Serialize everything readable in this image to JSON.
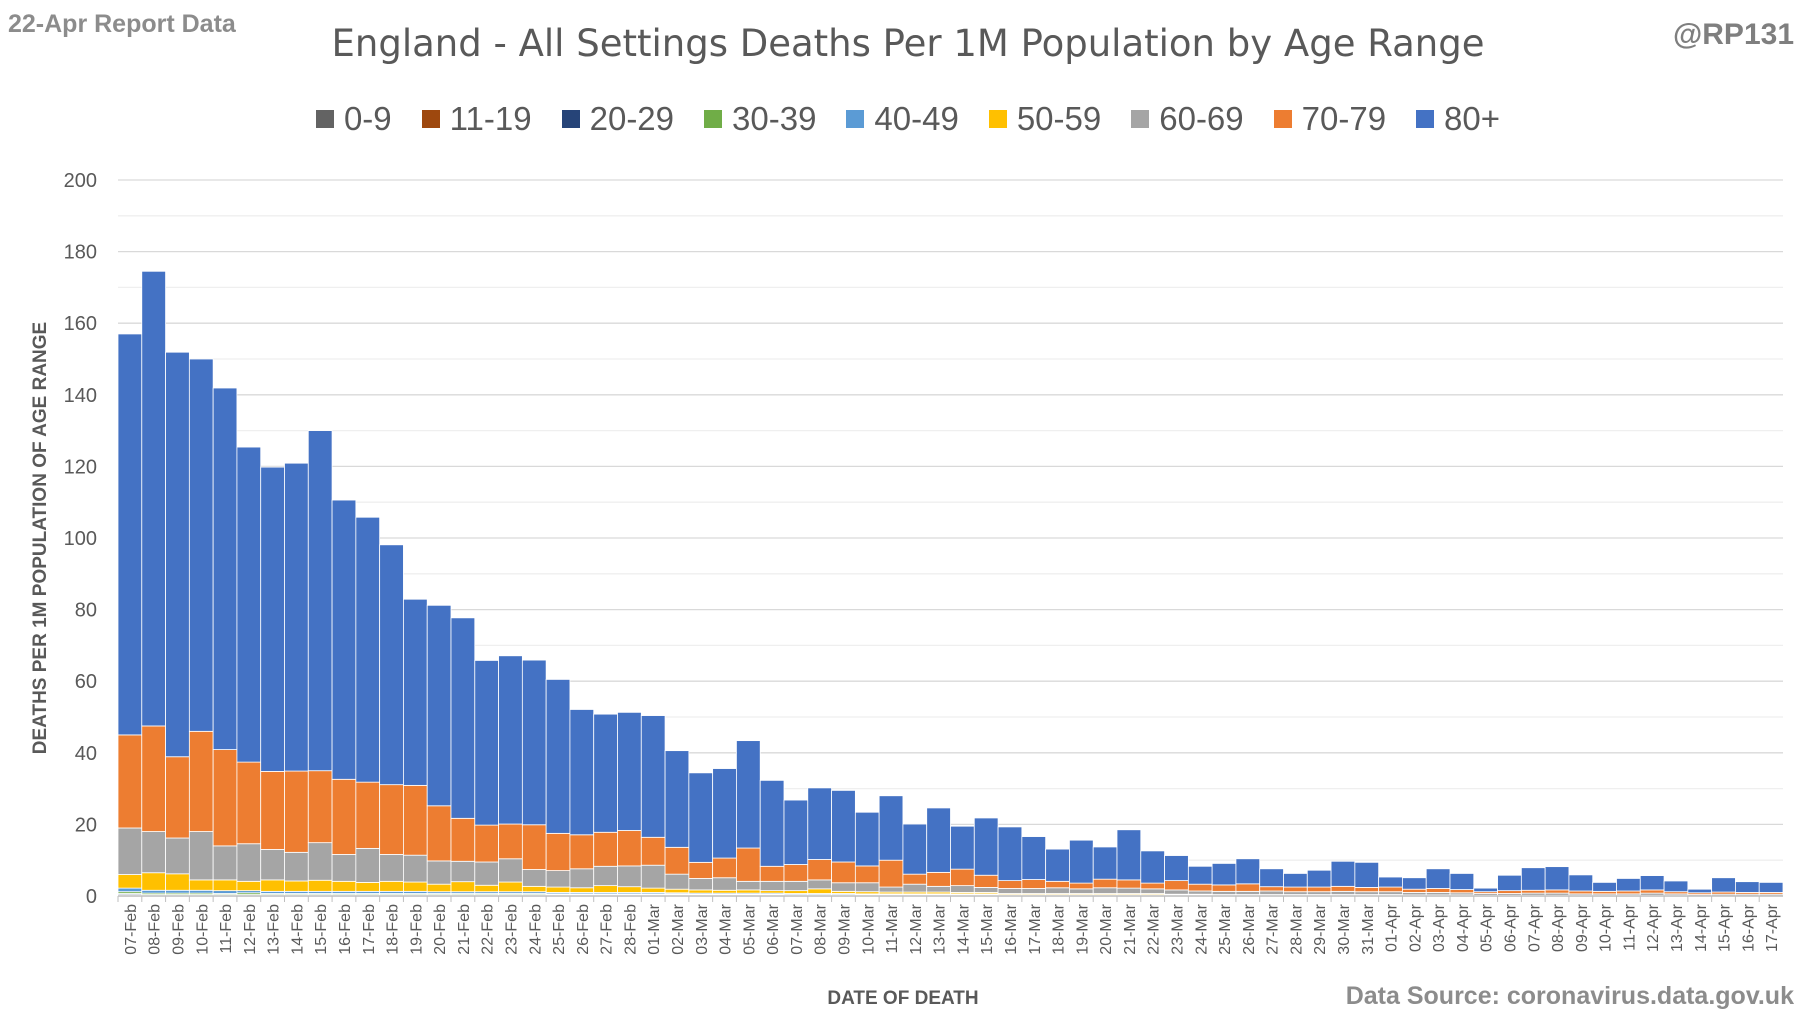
{
  "header": {
    "report_label": "22-Apr Report Data",
    "handle": "@RP131",
    "source": "Data Source: coronavirus.data.gov.uk"
  },
  "chart_data": {
    "type": "bar",
    "stacked": true,
    "title": "England - All Settings Deaths Per 1M Population by Age Range",
    "xlabel": "DATE OF DEATH",
    "ylabel": "DEATHS PER 1M POPULATION OF AGE RANGE",
    "ylim": [
      0,
      200
    ],
    "yticks": [
      0,
      20,
      40,
      60,
      80,
      100,
      120,
      140,
      160,
      180,
      200
    ],
    "grid": true,
    "legend_position": "top",
    "categories": [
      "07-Feb",
      "08-Feb",
      "09-Feb",
      "10-Feb",
      "11-Feb",
      "12-Feb",
      "13-Feb",
      "14-Feb",
      "15-Feb",
      "16-Feb",
      "17-Feb",
      "18-Feb",
      "19-Feb",
      "20-Feb",
      "21-Feb",
      "22-Feb",
      "23-Feb",
      "24-Feb",
      "25-Feb",
      "26-Feb",
      "27-Feb",
      "28-Feb",
      "01-Mar",
      "02-Mar",
      "03-Mar",
      "04-Mar",
      "05-Mar",
      "06-Mar",
      "07-Mar",
      "08-Mar",
      "09-Mar",
      "10-Mar",
      "11-Mar",
      "12-Mar",
      "13-Mar",
      "14-Mar",
      "15-Mar",
      "16-Mar",
      "17-Mar",
      "18-Mar",
      "19-Mar",
      "20-Mar",
      "21-Mar",
      "22-Mar",
      "23-Mar",
      "24-Mar",
      "25-Mar",
      "26-Mar",
      "27-Mar",
      "28-Mar",
      "29-Mar",
      "30-Mar",
      "31-Mar",
      "01-Apr",
      "02-Apr",
      "03-Apr",
      "04-Apr",
      "05-Apr",
      "06-Apr",
      "07-Apr",
      "08-Apr",
      "09-Apr",
      "10-Apr",
      "11-Apr",
      "12-Apr",
      "13-Apr",
      "14-Apr",
      "15-Apr",
      "16-Apr",
      "17-Apr"
    ],
    "series": [
      {
        "name": "0-9",
        "color": "#636363",
        "values": [
          0.2,
          0.1,
          0.1,
          0.1,
          0.1,
          0.1,
          0.1,
          0.1,
          0.1,
          0.1,
          0.1,
          0.1,
          0.1,
          0.1,
          0.1,
          0.1,
          0.1,
          0.1,
          0.1,
          0.1,
          0.1,
          0.1,
          0.1,
          0.1,
          0.1,
          0.1,
          0.1,
          0.1,
          0.1,
          0.1,
          0.1,
          0.1,
          0.1,
          0.1,
          0.1,
          0.1,
          0.1,
          0,
          0,
          0,
          0,
          0,
          0,
          0,
          0,
          0,
          0,
          0,
          0,
          0,
          0,
          0,
          0,
          0,
          0,
          0,
          0,
          0,
          0,
          0,
          0,
          0,
          0,
          0,
          0,
          0,
          0,
          0,
          0,
          0
        ]
      },
      {
        "name": "11-19",
        "color": "#9e480e",
        "values": [
          0.2,
          0.1,
          0.1,
          0.1,
          0.1,
          0.1,
          0.1,
          0.1,
          0.1,
          0.1,
          0.1,
          0.1,
          0.1,
          0.1,
          0.1,
          0.1,
          0.1,
          0.1,
          0.1,
          0.1,
          0.1,
          0.1,
          0.1,
          0.1,
          0.1,
          0.1,
          0.1,
          0.1,
          0.1,
          0.1,
          0.1,
          0.1,
          0.1,
          0.1,
          0.1,
          0.1,
          0.1,
          0,
          0,
          0,
          0,
          0,
          0,
          0,
          0,
          0,
          0,
          0,
          0,
          0,
          0,
          0,
          0,
          0,
          0,
          0,
          0,
          0,
          0,
          0,
          0,
          0,
          0,
          0,
          0,
          0,
          0,
          0,
          0,
          0
        ]
      },
      {
        "name": "20-29",
        "color": "#264478",
        "values": [
          0.3,
          0.2,
          0.2,
          0.2,
          0.2,
          0.2,
          0.2,
          0.2,
          0.2,
          0.2,
          0.2,
          0.2,
          0.2,
          0.2,
          0.2,
          0.2,
          0.2,
          0.2,
          0.2,
          0.2,
          0.2,
          0.2,
          0.2,
          0.2,
          0.1,
          0.1,
          0.1,
          0.1,
          0.1,
          0.1,
          0.1,
          0.1,
          0.1,
          0.1,
          0.1,
          0.1,
          0.1,
          0.1,
          0.1,
          0.1,
          0.1,
          0.1,
          0.1,
          0.1,
          0.1,
          0.1,
          0,
          0,
          0,
          0,
          0,
          0,
          0,
          0,
          0,
          0,
          0,
          0,
          0,
          0,
          0,
          0,
          0,
          0,
          0,
          0,
          0,
          0,
          0,
          0
        ]
      },
      {
        "name": "30-39",
        "color": "#70ad47",
        "values": [
          0.5,
          0.4,
          0.4,
          0.4,
          0.3,
          0.5,
          0.3,
          0.3,
          0.3,
          0.3,
          0.3,
          0.3,
          0.3,
          0.3,
          0.3,
          0.3,
          0.3,
          0.3,
          0.2,
          0.2,
          0.2,
          0.2,
          0.2,
          0.2,
          0.2,
          0.2,
          0.2,
          0.2,
          0.1,
          0.1,
          0.1,
          0.1,
          0.1,
          0.1,
          0.1,
          0.1,
          0.1,
          0.1,
          0.1,
          0.1,
          0.1,
          0.1,
          0.1,
          0.1,
          0.1,
          0.1,
          0.1,
          0.1,
          0.1,
          0.1,
          0.1,
          0.1,
          0.1,
          0.1,
          0.1,
          0.1,
          0.1,
          0,
          0,
          0,
          0,
          0,
          0,
          0,
          0,
          0,
          0,
          0,
          0,
          0
        ]
      },
      {
        "name": "40-49",
        "color": "#5b9bd5",
        "values": [
          1.0,
          0.8,
          0.8,
          0.8,
          0.8,
          0.6,
          0.6,
          0.6,
          0.6,
          0.6,
          0.6,
          0.6,
          0.6,
          0.5,
          0.5,
          0.5,
          0.5,
          0.5,
          0.4,
          0.4,
          0.4,
          0.4,
          0.4,
          0.3,
          0.3,
          0.3,
          0.3,
          0.3,
          0.3,
          0.3,
          0.3,
          0.2,
          0.2,
          0.2,
          0.2,
          0.2,
          0.2,
          0.2,
          0.2,
          0.2,
          0.2,
          0.2,
          0.2,
          0.2,
          0.1,
          0.1,
          0.1,
          0.1,
          0.1,
          0.1,
          0.1,
          0.1,
          0.1,
          0.1,
          0.1,
          0.1,
          0.1,
          0.1,
          0.1,
          0.1,
          0.1,
          0.1,
          0.1,
          0.1,
          0.1,
          0.1,
          0,
          0,
          0,
          0
        ]
      },
      {
        "name": "50-59",
        "color": "#ffc000",
        "values": [
          3.8,
          4.9,
          4.6,
          2.9,
          3.0,
          2.6,
          3.2,
          2.9,
          3.1,
          2.8,
          2.5,
          2.8,
          2.6,
          2.1,
          2.8,
          1.8,
          2.7,
          1.5,
          1.5,
          1.3,
          1.9,
          1.6,
          1.2,
          1.0,
          0.9,
          0.8,
          0.9,
          0.7,
          0.8,
          1.3,
          0.6,
          0.6,
          0.5,
          0.5,
          0.5,
          0.4,
          0.4,
          0.3,
          0.3,
          0.3,
          0.3,
          0.3,
          0.3,
          0.3,
          0.2,
          0.2,
          0.2,
          0.2,
          0.2,
          0.2,
          0.2,
          0.2,
          0.2,
          0.2,
          0.1,
          0.1,
          0.1,
          0.1,
          0.1,
          0.1,
          0.1,
          0.1,
          0.1,
          0.1,
          0.1,
          0.1,
          0.1,
          0.1,
          0.1,
          0.1
        ]
      },
      {
        "name": "60-69",
        "color": "#a5a5a5",
        "values": [
          13,
          11.5,
          10,
          13.5,
          9.5,
          10.5,
          8.5,
          8,
          10.5,
          7.5,
          9.5,
          7.5,
          7.5,
          6.5,
          5.7,
          6.5,
          6.5,
          4.7,
          4.6,
          5.3,
          5.4,
          5.8,
          6.4,
          4.2,
          3.2,
          3.5,
          2.4,
          2.6,
          2.6,
          2.5,
          2.4,
          2.5,
          1.4,
          2.2,
          1.6,
          1.9,
          1.4,
          1.4,
          1.4,
          1.6,
          1.3,
          1.6,
          1.5,
          1.3,
          1.2,
          0.9,
          0.9,
          0.9,
          1.0,
          0.8,
          0.8,
          0.9,
          0.8,
          0.8,
          0.7,
          0.7,
          0.6,
          0.5,
          0.5,
          0.6,
          0.6,
          0.4,
          0.4,
          0.4,
          0.6,
          0.4,
          0.3,
          0.4,
          0.4,
          0.4
        ]
      },
      {
        "name": "70-79",
        "color": "#ed7d31",
        "values": [
          26,
          29.5,
          22.7,
          28,
          26.9,
          22.8,
          21.8,
          22.7,
          20.1,
          21,
          18.5,
          19.5,
          19.5,
          15.4,
          12,
          10.3,
          9.7,
          12.5,
          10.4,
          9.5,
          9.5,
          9.9,
          7.8,
          7.5,
          4.5,
          5.5,
          9.3,
          4.2,
          4.7,
          5.7,
          5.8,
          4.7,
          7.5,
          2.8,
          3.9,
          4.6,
          3.4,
          2.2,
          2.5,
          1.8,
          1.6,
          2.4,
          2.3,
          1.6,
          2.6,
          1.9,
          1.8,
          2.1,
          1.2,
          1.3,
          1.3,
          1.4,
          1.2,
          1.3,
          0.9,
          1.1,
          0.9,
          0.5,
          0.8,
          0.8,
          0.9,
          0.8,
          0.7,
          0.8,
          0.9,
          0.6,
          0.5,
          0.6,
          0.5,
          0.5
        ]
      },
      {
        "name": "80+",
        "color": "#4472c4",
        "values": [
          112,
          127,
          113,
          104,
          101,
          88,
          85,
          86,
          95,
          78,
          74,
          67,
          52,
          56,
          56,
          46,
          47,
          46,
          43,
          35,
          33,
          33,
          34,
          27,
          25,
          25,
          30,
          24,
          18,
          20,
          20,
          15,
          18,
          14,
          18,
          12,
          16,
          15,
          12,
          9,
          12,
          9,
          14,
          9,
          7,
          5,
          6,
          7,
          5,
          3.8,
          4.7,
          7,
          7,
          2.8,
          3.2,
          5.5,
          4.5,
          1,
          4.3,
          6.3,
          6.5,
          4.5,
          2.5,
          3.5,
          4,
          3,
          1,
          4,
          3,
          2.8
        ]
      }
    ]
  }
}
